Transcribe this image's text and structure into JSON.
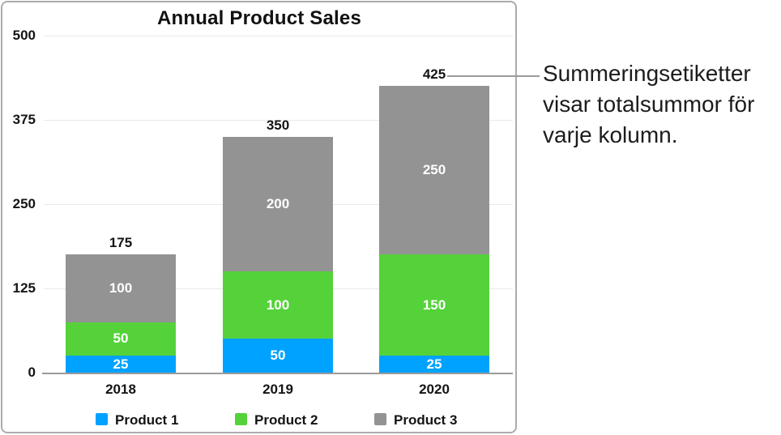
{
  "chart_data": {
    "type": "bar",
    "stacked": true,
    "title": "Annual Product Sales",
    "categories": [
      "2018",
      "2019",
      "2020"
    ],
    "series": [
      {
        "name": "Product 1",
        "color": "#00a2ff",
        "values": [
          25,
          50,
          25
        ]
      },
      {
        "name": "Product 2",
        "color": "#55d23a",
        "values": [
          50,
          100,
          150
        ]
      },
      {
        "name": "Product 3",
        "color": "#939393",
        "values": [
          100,
          200,
          250
        ]
      }
    ],
    "totals": [
      175,
      350,
      425
    ],
    "y_ticks": [
      0,
      125,
      250,
      375,
      500
    ],
    "ylim": [
      0,
      500
    ],
    "xlabel": "",
    "ylabel": "",
    "grid": true,
    "legend_position": "bottom"
  },
  "callout": {
    "text": "Summeringsetiketter visar totalsummor för varje kolumn.",
    "lines": [
      "Summeringsetiketter",
      "visar totalsummor för",
      "varje kolumn."
    ]
  },
  "colors": {
    "grid": "#e9e9e9",
    "axis_line": "#9b9b9b",
    "frame_border": "#acacac",
    "callout_line": "#9b9b9b",
    "segment_label": "#ffffff",
    "text": "#141414"
  }
}
